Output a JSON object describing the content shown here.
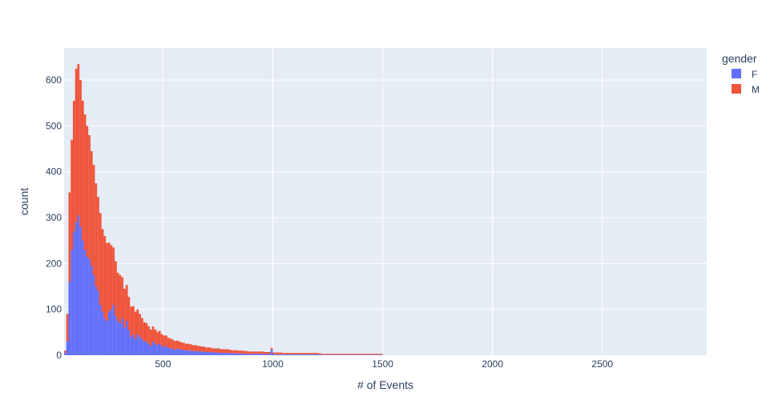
{
  "chart_data": {
    "type": "bar",
    "subtype": "stacked-histogram",
    "xlabel": "# of Events",
    "ylabel": "count",
    "xlim": [
      50,
      2975
    ],
    "ylim": [
      0,
      670
    ],
    "x_ticks": [
      500,
      1000,
      1500,
      2000,
      2500
    ],
    "y_ticks": [
      0,
      100,
      200,
      300,
      400,
      500,
      600
    ],
    "grid": true,
    "bin_width": 10,
    "legend": {
      "title": "gender",
      "placement": "top-right",
      "entries": [
        {
          "label": "F",
          "color": "#636efa"
        },
        {
          "label": "M",
          "color": "#ef553b"
        }
      ]
    },
    "series": [
      {
        "name": "F",
        "color": "#636efa",
        "x": [
          55,
          65,
          75,
          85,
          95,
          105,
          115,
          125,
          135,
          145,
          155,
          165,
          175,
          185,
          195,
          205,
          215,
          225,
          235,
          245,
          255,
          265,
          275,
          285,
          295,
          305,
          315,
          325,
          335,
          345,
          355,
          365,
          375,
          385,
          395,
          405,
          415,
          425,
          435,
          445,
          455,
          465,
          475,
          485,
          495,
          505,
          515,
          525,
          535,
          545,
          555,
          565,
          575,
          585,
          595,
          605,
          615,
          625,
          635,
          645,
          655,
          665,
          675,
          685,
          695,
          705,
          715,
          725,
          735,
          745,
          755,
          765,
          775,
          785,
          795,
          805,
          815,
          825,
          835,
          845,
          855,
          865,
          875,
          885,
          895,
          905,
          915,
          925,
          935,
          945,
          955,
          965,
          975,
          985,
          995,
          1005,
          1015,
          1025,
          1035,
          1045,
          1055,
          1065,
          1075,
          1085,
          1095,
          1105,
          1115,
          1125,
          1135,
          1145,
          1155,
          1165,
          1175,
          1185,
          1195,
          1205,
          1215,
          1225,
          1235,
          1245,
          1255,
          1265,
          1275,
          1285,
          1295,
          1305,
          1315,
          1325,
          1335,
          1345,
          1355,
          1365,
          1375,
          1385,
          1395,
          1405,
          1415,
          1425,
          1435,
          1445,
          1455,
          1465,
          1475,
          1485,
          1495
        ],
        "values": [
          5,
          30,
          160,
          230,
          270,
          290,
          305,
          280,
          250,
          230,
          215,
          210,
          195,
          175,
          150,
          140,
          110,
          95,
          80,
          75,
          95,
          100,
          110,
          85,
          75,
          70,
          80,
          60,
          75,
          55,
          40,
          45,
          35,
          45,
          40,
          35,
          30,
          30,
          25,
          20,
          30,
          25,
          22,
          25,
          20,
          18,
          20,
          16,
          15,
          14,
          12,
          14,
          13,
          12,
          12,
          10,
          11,
          10,
          9,
          9,
          9,
          8,
          8,
          8,
          7,
          7,
          7,
          6,
          6,
          6,
          6,
          5,
          5,
          5,
          5,
          5,
          4,
          4,
          4,
          4,
          4,
          4,
          3,
          3,
          3,
          3,
          3,
          3,
          3,
          3,
          3,
          3,
          3,
          3,
          12,
          2,
          2,
          2,
          2,
          2,
          2,
          2,
          2,
          2,
          2,
          2,
          2,
          2,
          2,
          2,
          2,
          2,
          2,
          2,
          2,
          2,
          2,
          1,
          1,
          1,
          1,
          1,
          1,
          1,
          1,
          1,
          1,
          1,
          1,
          1,
          1,
          1,
          1,
          1,
          1,
          1,
          1,
          1,
          1,
          1,
          1,
          1,
          1,
          1,
          1
        ]
      },
      {
        "name": "M",
        "color": "#ef553b",
        "x": [
          55,
          65,
          75,
          85,
          95,
          105,
          115,
          125,
          135,
          145,
          155,
          165,
          175,
          185,
          195,
          205,
          215,
          225,
          235,
          245,
          255,
          265,
          275,
          285,
          295,
          305,
          315,
          325,
          335,
          345,
          355,
          365,
          375,
          385,
          395,
          405,
          415,
          425,
          435,
          445,
          455,
          465,
          475,
          485,
          495,
          505,
          515,
          525,
          535,
          545,
          555,
          565,
          575,
          585,
          595,
          605,
          615,
          625,
          635,
          645,
          655,
          665,
          675,
          685,
          695,
          705,
          715,
          725,
          735,
          745,
          755,
          765,
          775,
          785,
          795,
          805,
          815,
          825,
          835,
          845,
          855,
          865,
          875,
          885,
          895,
          905,
          915,
          925,
          935,
          945,
          955,
          965,
          975,
          985,
          995,
          1005,
          1015,
          1025,
          1035,
          1045,
          1055,
          1065,
          1075,
          1085,
          1095,
          1105,
          1115,
          1125,
          1135,
          1145,
          1155,
          1165,
          1175,
          1185,
          1195,
          1205,
          1215,
          1225,
          1235,
          1245,
          1255,
          1265,
          1275,
          1285,
          1295,
          1305,
          1315,
          1325,
          1335,
          1345,
          1355,
          1365,
          1375,
          1385,
          1395,
          1405,
          1415,
          1425,
          1435,
          1445,
          1455,
          1465,
          1475,
          1485,
          1495
        ],
        "values": [
          5,
          60,
          195,
          240,
          285,
          335,
          330,
          320,
          305,
          295,
          285,
          270,
          250,
          240,
          225,
          205,
          200,
          180,
          180,
          170,
          150,
          140,
          125,
          120,
          105,
          105,
          90,
          85,
          78,
          72,
          66,
          62,
          60,
          55,
          50,
          46,
          42,
          40,
          38,
          36,
          33,
          31,
          29,
          28,
          26,
          25,
          23,
          22,
          21,
          20,
          19,
          18,
          17,
          16,
          15,
          15,
          14,
          14,
          13,
          13,
          12,
          12,
          11,
          11,
          10,
          10,
          10,
          9,
          9,
          9,
          9,
          8,
          8,
          8,
          8,
          7,
          7,
          7,
          7,
          6,
          6,
          6,
          6,
          6,
          5,
          5,
          5,
          5,
          5,
          5,
          5,
          4,
          4,
          4,
          4,
          4,
          4,
          4,
          4,
          3,
          3,
          3,
          3,
          3,
          3,
          3,
          3,
          3,
          3,
          3,
          3,
          3,
          3,
          3,
          3,
          3,
          2,
          2,
          2,
          2,
          2,
          2,
          2,
          2,
          2,
          2,
          2,
          2,
          2,
          2,
          2,
          2,
          2,
          2,
          2,
          2,
          2,
          2,
          2,
          2,
          2,
          2,
          2,
          2,
          2
        ]
      }
    ]
  }
}
